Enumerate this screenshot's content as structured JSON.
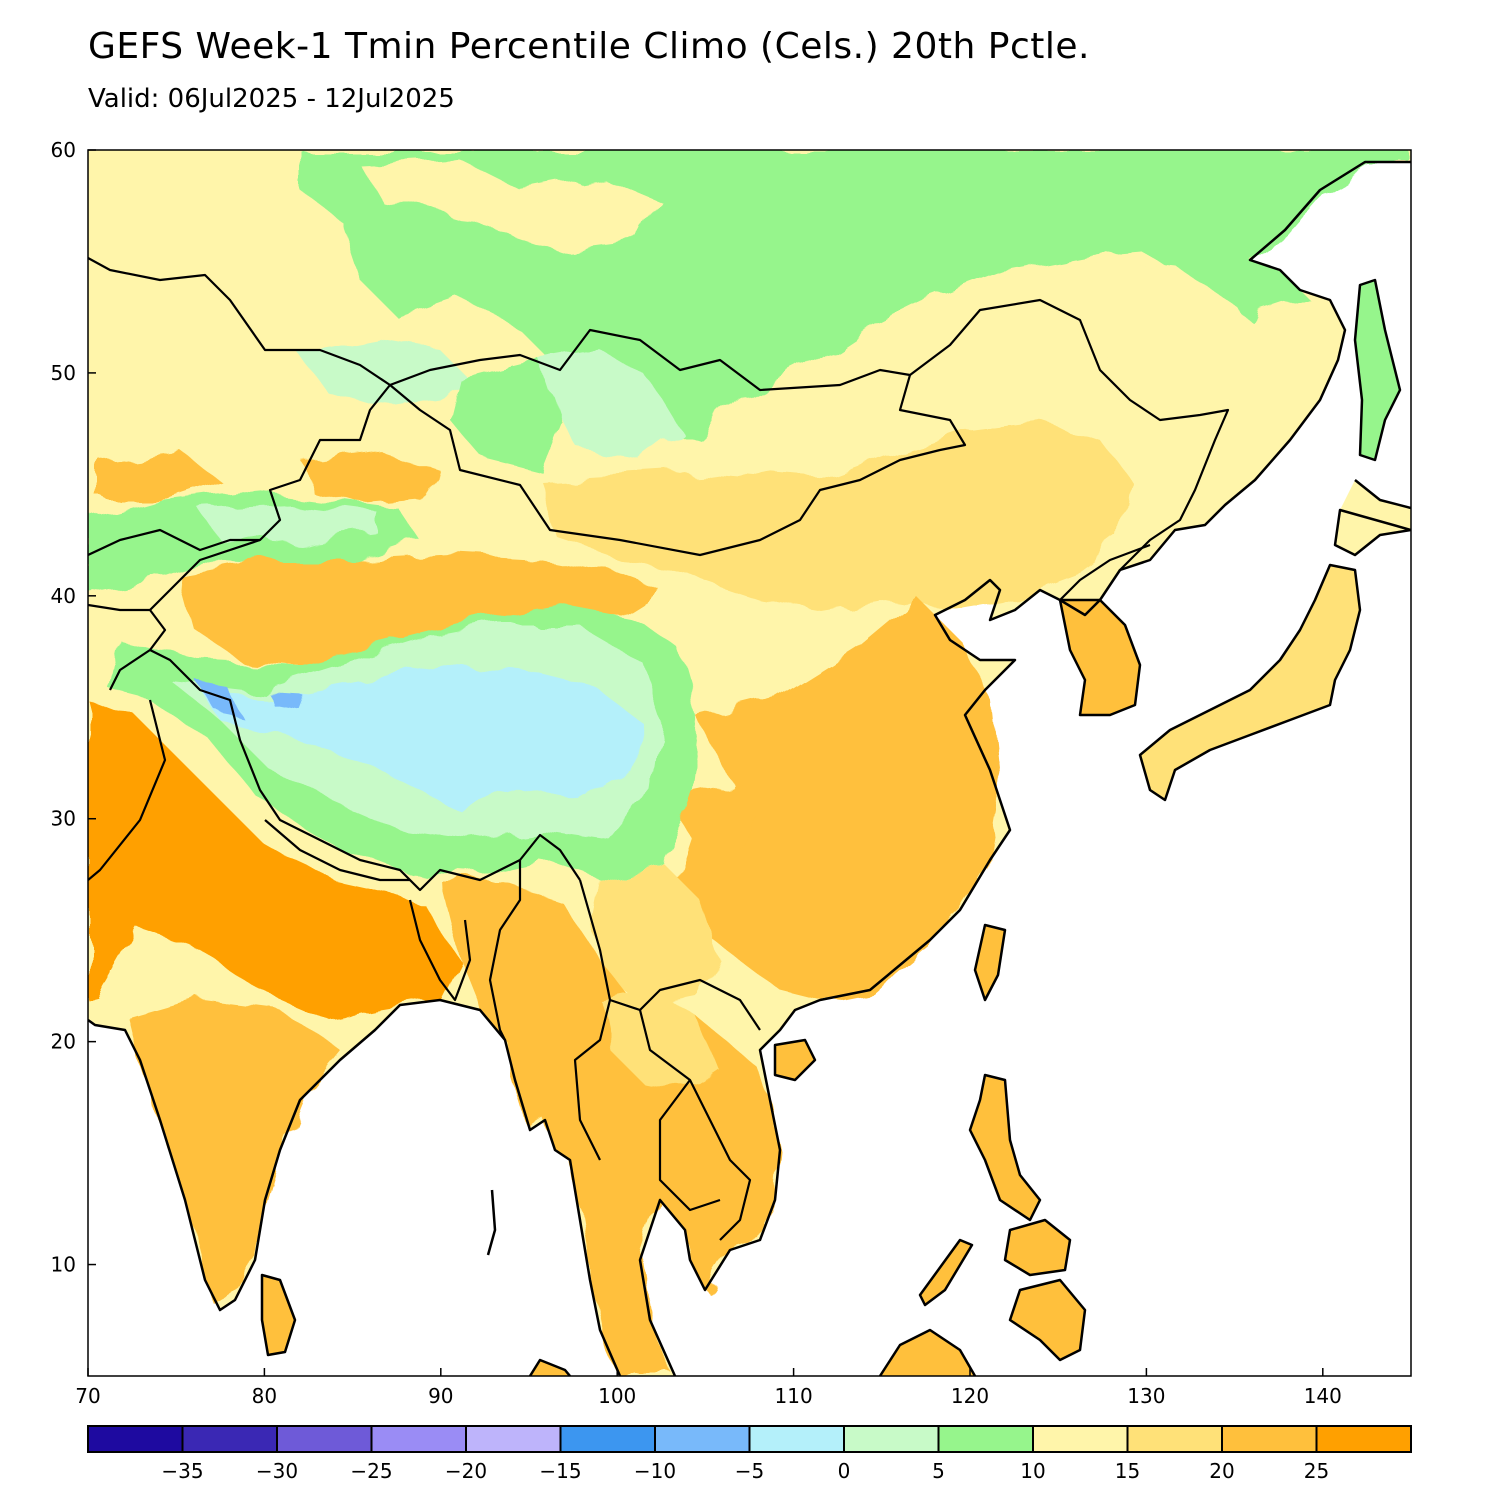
{
  "header": {
    "title": "GEFS Week-1 Tmin Percentile Climo (Cels.) 20th Pctle.",
    "valid": "Valid: 06Jul2025 - 12Jul2025"
  },
  "map": {
    "region": "East and South Asia",
    "lon_range": [
      70,
      145
    ],
    "lat_range": [
      5,
      60
    ],
    "lon_ticks": [
      "70",
      "80",
      "90",
      "100",
      "110",
      "120",
      "130",
      "140"
    ],
    "lat_ticks": [
      "10",
      "20",
      "30",
      "40",
      "50",
      "60"
    ],
    "ocean_color": "#ffffff",
    "coastline_color": "#000000"
  },
  "colorbar": {
    "labels": [
      "-35",
      "-30",
      "-25",
      "-20",
      "-15",
      "-10",
      "-5",
      "0",
      "5",
      "10",
      "15",
      "20",
      "25"
    ],
    "colors": [
      "#1e0aa0",
      "#3a28b4",
      "#6e5ad8",
      "#9a8cf5",
      "#beb4fb",
      "#3c96f0",
      "#78b9fa",
      "#b4f0fa",
      "#c8fac8",
      "#96f58c",
      "#fff5aa",
      "#ffe178",
      "#ffc03c",
      "#ffa000"
    ]
  }
}
